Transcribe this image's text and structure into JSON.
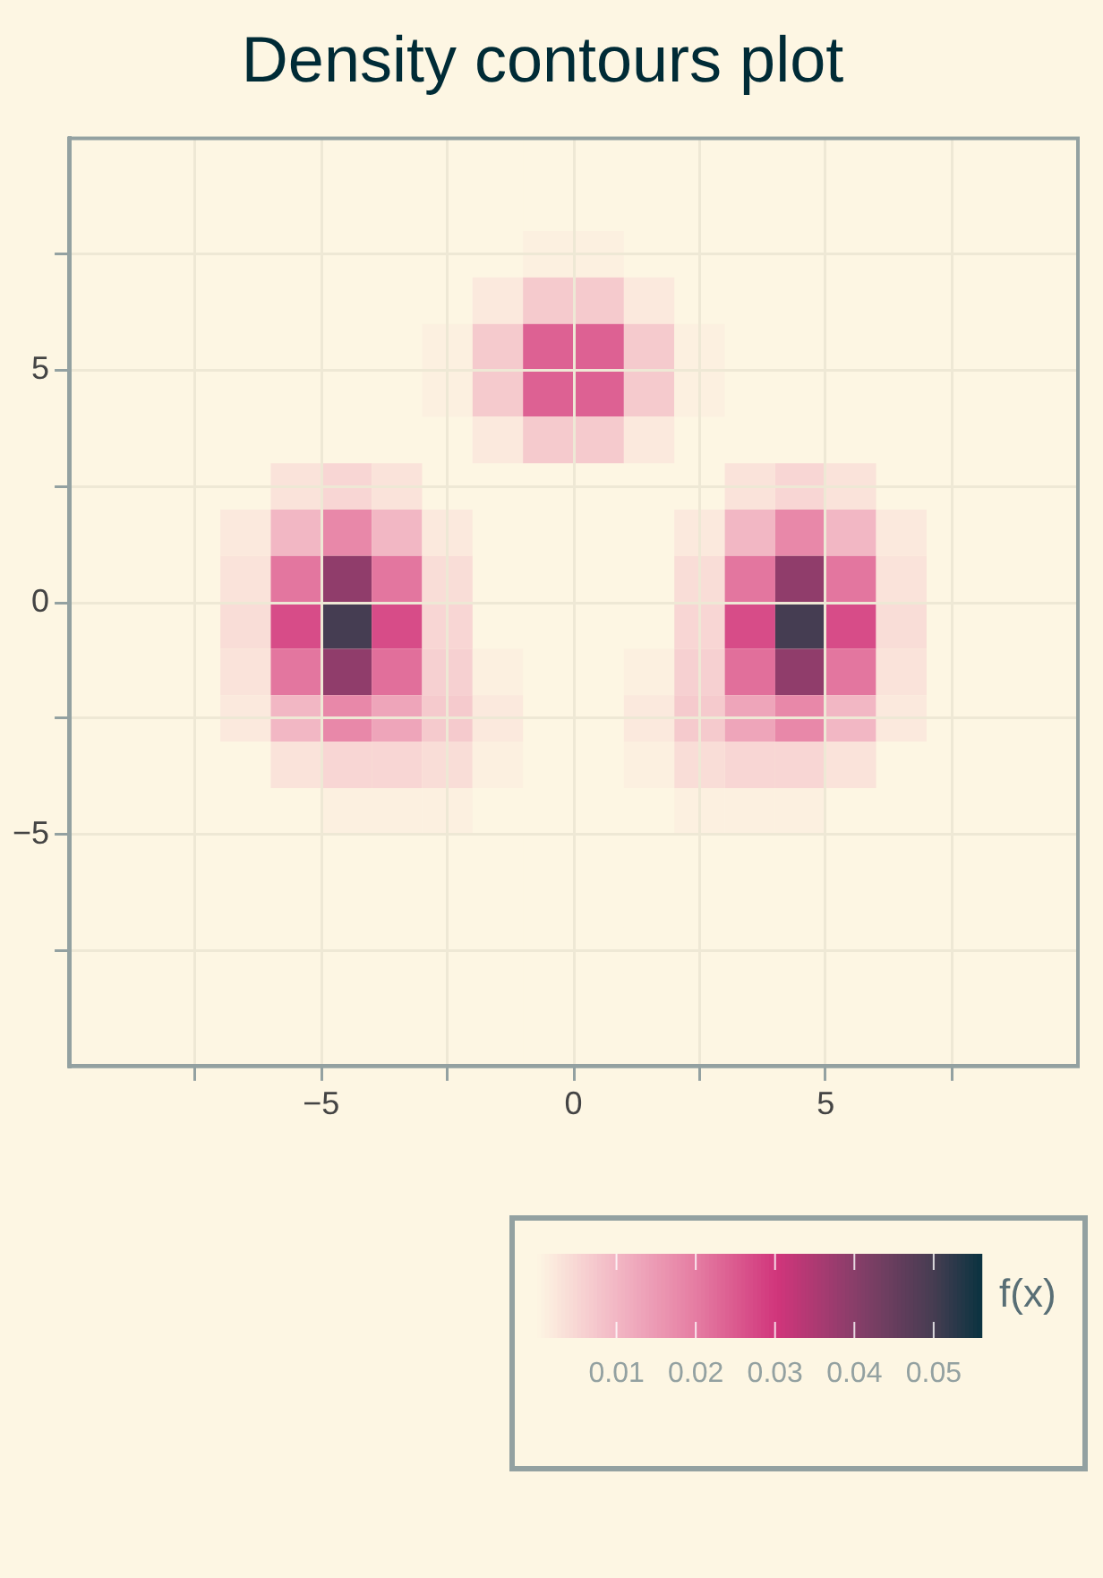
{
  "chart_data": {
    "type": "heatmap",
    "title": "Density contours plot",
    "clabel": "f(x)",
    "x": [
      -9.5,
      -8.5,
      -7.5,
      -6.5,
      -5.5,
      -4.5,
      -3.5,
      -2.5,
      -1.5,
      -0.5,
      0.5,
      1.5,
      2.5,
      3.5,
      4.5,
      5.5,
      6.5,
      7.5,
      8.5,
      9.5
    ],
    "xlim": [
      -10,
      10
    ],
    "ylim": [
      -10,
      10
    ],
    "xticks": [
      {
        "value": -7.5,
        "label": null
      },
      {
        "value": -5,
        "label": "−5"
      },
      {
        "value": -2.5,
        "label": null
      },
      0,
      {
        "value": 2.5,
        "label": null
      },
      5,
      {
        "value": 7.5,
        "label": null
      }
    ],
    "yticks": [
      {
        "value": -7.5,
        "label": null
      },
      {
        "value": -5,
        "label": "−5"
      },
      {
        "value": -2.5,
        "label": null
      },
      0,
      {
        "value": 2.5,
        "label": null
      },
      5,
      {
        "value": 7.5,
        "label": null
      }
    ],
    "grid": true,
    "clim": [
      0,
      0.056
    ],
    "cticks": [
      0.01,
      0.02,
      0.03,
      0.04,
      0.05
    ],
    "cells": [
      [
        0,
        0,
        0,
        0,
        0,
        0,
        0,
        0,
        0,
        0,
        0,
        0,
        0,
        0,
        0,
        0,
        0,
        0,
        0,
        0
      ],
      [
        0,
        0,
        0,
        0,
        0,
        0,
        0,
        0,
        0,
        0,
        0,
        0,
        0,
        0,
        0,
        0,
        0,
        0,
        0,
        0
      ],
      [
        null,
        null,
        null,
        null,
        null,
        null,
        null,
        null,
        null,
        0.001,
        0.001,
        null,
        null,
        null,
        null,
        null,
        null,
        null,
        null,
        null
      ],
      [
        null,
        null,
        null,
        null,
        null,
        null,
        null,
        null,
        0.002,
        0.007,
        0.007,
        0.002,
        null,
        null,
        null,
        null,
        null,
        null,
        null,
        null
      ],
      [
        null,
        null,
        null,
        null,
        null,
        null,
        null,
        0.001,
        0.007,
        0.024,
        0.024,
        0.007,
        0.001,
        null,
        null,
        null,
        null,
        null,
        null,
        null
      ],
      [
        null,
        null,
        null,
        null,
        null,
        null,
        null,
        0.001,
        0.007,
        0.024,
        0.024,
        0.007,
        0.001,
        null,
        null,
        null,
        null,
        null,
        null,
        null
      ],
      [
        null,
        null,
        null,
        null,
        null,
        null,
        null,
        null,
        0.002,
        0.007,
        0.007,
        0.002,
        null,
        null,
        null,
        null,
        null,
        null,
        null,
        null
      ],
      [
        null,
        null,
        null,
        null,
        0.003,
        0.005,
        0.003,
        null,
        null,
        null,
        null,
        null,
        null,
        0.003,
        0.005,
        0.003,
        null,
        null,
        null,
        null
      ],
      [
        null,
        null,
        null,
        0.002,
        0.01,
        0.018,
        0.01,
        0.002,
        null,
        null,
        null,
        null,
        0.002,
        0.01,
        0.018,
        0.01,
        0.002,
        null,
        null,
        null
      ],
      [
        null,
        null,
        null,
        0.003,
        0.021,
        0.039,
        0.021,
        0.004,
        null,
        null,
        null,
        null,
        0.004,
        0.021,
        0.039,
        0.021,
        0.003,
        null,
        null,
        null
      ],
      [
        null,
        null,
        null,
        0.004,
        0.027,
        0.05,
        0.027,
        0.005,
        null,
        null,
        null,
        null,
        0.005,
        0.027,
        0.05,
        0.027,
        0.004,
        null,
        null,
        null
      ],
      [
        null,
        null,
        null,
        0.003,
        0.021,
        0.039,
        0.022,
        0.006,
        0.001,
        null,
        null,
        0.001,
        0.006,
        0.022,
        0.039,
        0.021,
        0.003,
        null,
        null,
        null
      ],
      [
        null,
        null,
        null,
        0.002,
        0.01,
        0.018,
        0.013,
        0.007,
        0.002,
        null,
        null,
        0.002,
        0.007,
        0.013,
        0.018,
        0.01,
        0.002,
        null,
        null,
        null
      ],
      [
        null,
        null,
        null,
        null,
        0.003,
        0.005,
        0.005,
        0.004,
        0.001,
        null,
        null,
        0.001,
        0.004,
        0.005,
        0.005,
        0.003,
        null,
        null,
        null,
        null
      ],
      [
        null,
        null,
        null,
        null,
        null,
        0.001,
        0.001,
        0.001,
        null,
        null,
        null,
        null,
        0.001,
        0.001,
        0.001,
        null,
        null,
        null,
        null,
        null
      ],
      [
        0,
        0,
        0,
        0,
        0,
        0,
        0,
        0,
        0,
        0,
        0,
        0,
        0,
        0,
        0,
        0,
        0,
        0,
        0,
        0
      ],
      [
        0,
        0,
        0,
        0,
        0,
        0,
        0,
        0,
        0,
        0,
        0,
        0,
        0,
        0,
        0,
        0,
        0,
        0,
        0,
        0
      ],
      [
        0,
        0,
        0,
        0,
        0,
        0,
        0,
        0,
        0,
        0,
        0,
        0,
        0,
        0,
        0,
        0,
        0,
        0,
        0,
        0
      ],
      [
        0,
        0,
        0,
        0,
        0,
        0,
        0,
        0,
        0,
        0,
        0,
        0,
        0,
        0,
        0,
        0,
        0,
        0,
        0,
        0
      ],
      [
        0,
        0,
        0,
        0,
        0,
        0,
        0,
        0,
        0,
        0,
        0,
        0,
        0,
        0,
        0,
        0,
        0,
        0,
        0,
        0
      ]
    ]
  }
}
